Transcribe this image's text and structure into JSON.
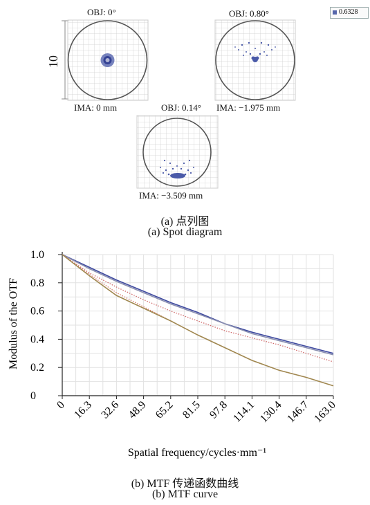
{
  "spot": {
    "wavelength": "0.6328",
    "scale_label": "10",
    "fields": [
      {
        "obj": "OBJ: 0°",
        "ima": "IMA: 0 mm"
      },
      {
        "obj": "OBJ: 0.80°",
        "ima": "IMA: −1.975 mm"
      },
      {
        "obj": "OBJ: 0.14°",
        "ima": "IMA: −3.509 mm"
      }
    ],
    "caption_cn": "(a) 点列图",
    "caption_en": "(a) Spot diagram"
  },
  "chart_data": {
    "type": "line",
    "xlabel": "Spatial frequency/cycles·mm⁻¹",
    "ylabel": "Modulus of the OTF",
    "x": [
      0,
      16.3,
      32.6,
      48.9,
      65.2,
      81.5,
      97.8,
      114.1,
      130.4,
      146.7,
      163.0
    ],
    "x_tick_labels": [
      "0",
      "16.3",
      "32.6",
      "48.9",
      "65.2",
      "81.5",
      "97.8",
      "114.1",
      "130.4",
      "146.7",
      "163.0"
    ],
    "y_ticks": [
      "0",
      "0.2",
      "0.4",
      "0.6",
      "0.8",
      "1.0"
    ],
    "xlim": [
      0,
      163
    ],
    "ylim": [
      0,
      1
    ],
    "grid": true,
    "series": [
      {
        "color": "#3f4aa0",
        "style": "solid",
        "values": [
          1.0,
          0.91,
          0.82,
          0.74,
          0.66,
          0.59,
          0.51,
          0.45,
          0.4,
          0.35,
          0.3
        ]
      },
      {
        "color": "#8a8fb0",
        "style": "solid",
        "values": [
          1.0,
          0.9,
          0.81,
          0.73,
          0.65,
          0.58,
          0.51,
          0.44,
          0.39,
          0.34,
          0.29
        ]
      },
      {
        "color": "#d06a6a",
        "style": "dotted",
        "values": [
          1.0,
          0.87,
          0.77,
          0.68,
          0.6,
          0.53,
          0.46,
          0.41,
          0.36,
          0.3,
          0.24
        ]
      },
      {
        "color": "#d87a6a",
        "style": "dotted",
        "values": [
          1.0,
          0.86,
          0.73,
          0.63,
          0.53,
          0.43,
          0.34,
          0.25,
          0.18,
          0.13,
          0.07
        ]
      },
      {
        "color": "#a08850",
        "style": "solid",
        "values": [
          1.0,
          0.85,
          0.71,
          0.62,
          0.53,
          0.43,
          0.34,
          0.25,
          0.18,
          0.13,
          0.07
        ]
      }
    ],
    "caption_cn": "(b) MTF 传递函数曲线",
    "caption_en": "(b) MTF curve"
  }
}
